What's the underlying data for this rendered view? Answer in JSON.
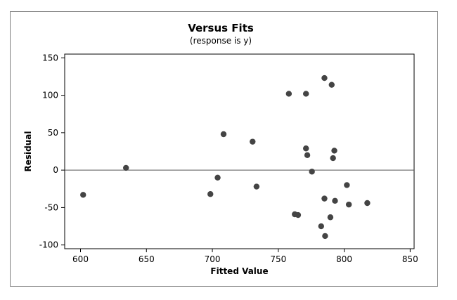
{
  "chart_data": {
    "type": "scatter",
    "title": "Versus Fits",
    "subtitle": "(response is y)",
    "xlabel": "Fitted Value",
    "ylabel": "Residual",
    "xlim": [
      588,
      853
    ],
    "ylim": [
      -105,
      155
    ],
    "xticks": [
      600,
      650,
      700,
      750,
      800,
      850
    ],
    "yticks": [
      -100,
      -50,
      0,
      50,
      100,
      150
    ],
    "reference_line_y": 0,
    "grid": false,
    "marker_color": "#444444",
    "points": [
      {
        "x": 602,
        "y": -33
      },
      {
        "x": 634.5,
        "y": 3
      },
      {
        "x": 698.5,
        "y": -32
      },
      {
        "x": 704,
        "y": -10
      },
      {
        "x": 708.5,
        "y": 48
      },
      {
        "x": 730.5,
        "y": 38
      },
      {
        "x": 733.5,
        "y": -22
      },
      {
        "x": 758,
        "y": 102
      },
      {
        "x": 762.5,
        "y": -59
      },
      {
        "x": 765,
        "y": -60
      },
      {
        "x": 771,
        "y": 102
      },
      {
        "x": 771,
        "y": 29
      },
      {
        "x": 772,
        "y": 20
      },
      {
        "x": 775.5,
        "y": -2
      },
      {
        "x": 782.5,
        "y": -75
      },
      {
        "x": 785,
        "y": 123
      },
      {
        "x": 785,
        "y": -38
      },
      {
        "x": 785.5,
        "y": -88
      },
      {
        "x": 789.5,
        "y": -63
      },
      {
        "x": 790.5,
        "y": 114
      },
      {
        "x": 791.5,
        "y": 16
      },
      {
        "x": 792.5,
        "y": 26
      },
      {
        "x": 793,
        "y": -41
      },
      {
        "x": 802,
        "y": -20
      },
      {
        "x": 803.5,
        "y": -46
      },
      {
        "x": 817.5,
        "y": -44
      }
    ]
  }
}
